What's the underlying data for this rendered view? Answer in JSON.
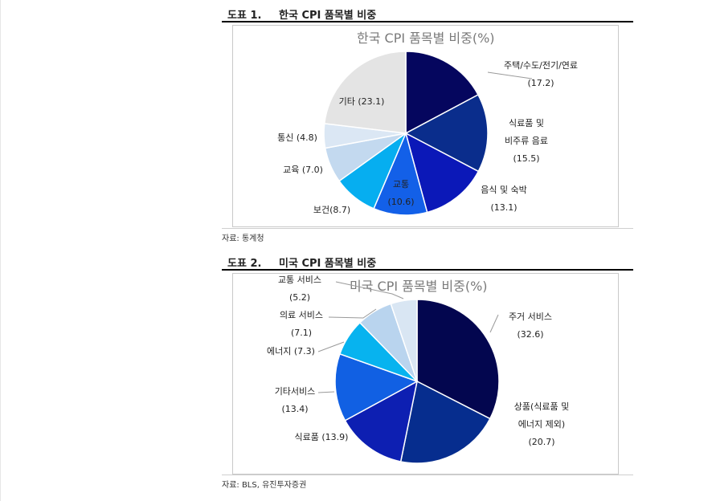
{
  "charts": [
    {
      "fig_no": "도표 1.",
      "fig_title": "한국 CPI 품목별 비중",
      "source": "자료: 통계청"
    },
    {
      "fig_no": "도표 2.",
      "fig_title": "미국 CPI 품목별 비중",
      "source": "자료: BLS, 유진투자증권"
    }
  ],
  "chart_data": [
    {
      "type": "pie",
      "title": "한국 CPI 품목별 비중(%)",
      "slices": [
        {
          "lines": [
            "주택/수도/전기/연료",
            "(17.2)"
          ],
          "value": 17.2,
          "color": "#05065e"
        },
        {
          "lines": [
            "식료품 및",
            "비주류 음료",
            "(15.5)"
          ],
          "value": 15.5,
          "color": "#0a2d8c"
        },
        {
          "lines": [
            "음식 및 숙박",
            "(13.1)"
          ],
          "value": 13.1,
          "color": "#0b18b8"
        },
        {
          "lines": [
            "교통",
            "(10.6)"
          ],
          "value": 10.6,
          "color": "#1360e8"
        },
        {
          "lines": [
            "보건(8.7)"
          ],
          "value": 8.7,
          "color": "#06aef0"
        },
        {
          "lines": [
            "교육 (7.0)"
          ],
          "value": 7.0,
          "color": "#c3d9ef"
        },
        {
          "lines": [
            "통신 (4.8)"
          ],
          "value": 4.8,
          "color": "#dbe7f4"
        },
        {
          "lines": [
            "기타 (23.1)"
          ],
          "value": 23.1,
          "color": "#e4e4e4"
        }
      ]
    },
    {
      "type": "pie",
      "title": "미국 CPI 품목별 비중(%)",
      "slices": [
        {
          "lines": [
            "주거 서비스",
            "(32.6)"
          ],
          "value": 32.6,
          "color": "#03064f"
        },
        {
          "lines": [
            "상품(식료품 및",
            "에너지 제외)",
            "(20.7)"
          ],
          "value": 20.7,
          "color": "#062d8e"
        },
        {
          "lines": [
            "식료품 (13.9)"
          ],
          "value": 13.9,
          "color": "#0d1fb2"
        },
        {
          "lines": [
            "기타서비스",
            "(13.4)"
          ],
          "value": 13.4,
          "color": "#1160e3"
        },
        {
          "lines": [
            "에너지 (7.3)"
          ],
          "value": 7.3,
          "color": "#07b3ef"
        },
        {
          "lines": [
            "의료 서비스",
            "(7.1)"
          ],
          "value": 7.1,
          "color": "#b9d4ee"
        },
        {
          "lines": [
            "교통 서비스",
            "(5.2)"
          ],
          "value": 5.2,
          "color": "#d9e6f3"
        }
      ]
    }
  ]
}
